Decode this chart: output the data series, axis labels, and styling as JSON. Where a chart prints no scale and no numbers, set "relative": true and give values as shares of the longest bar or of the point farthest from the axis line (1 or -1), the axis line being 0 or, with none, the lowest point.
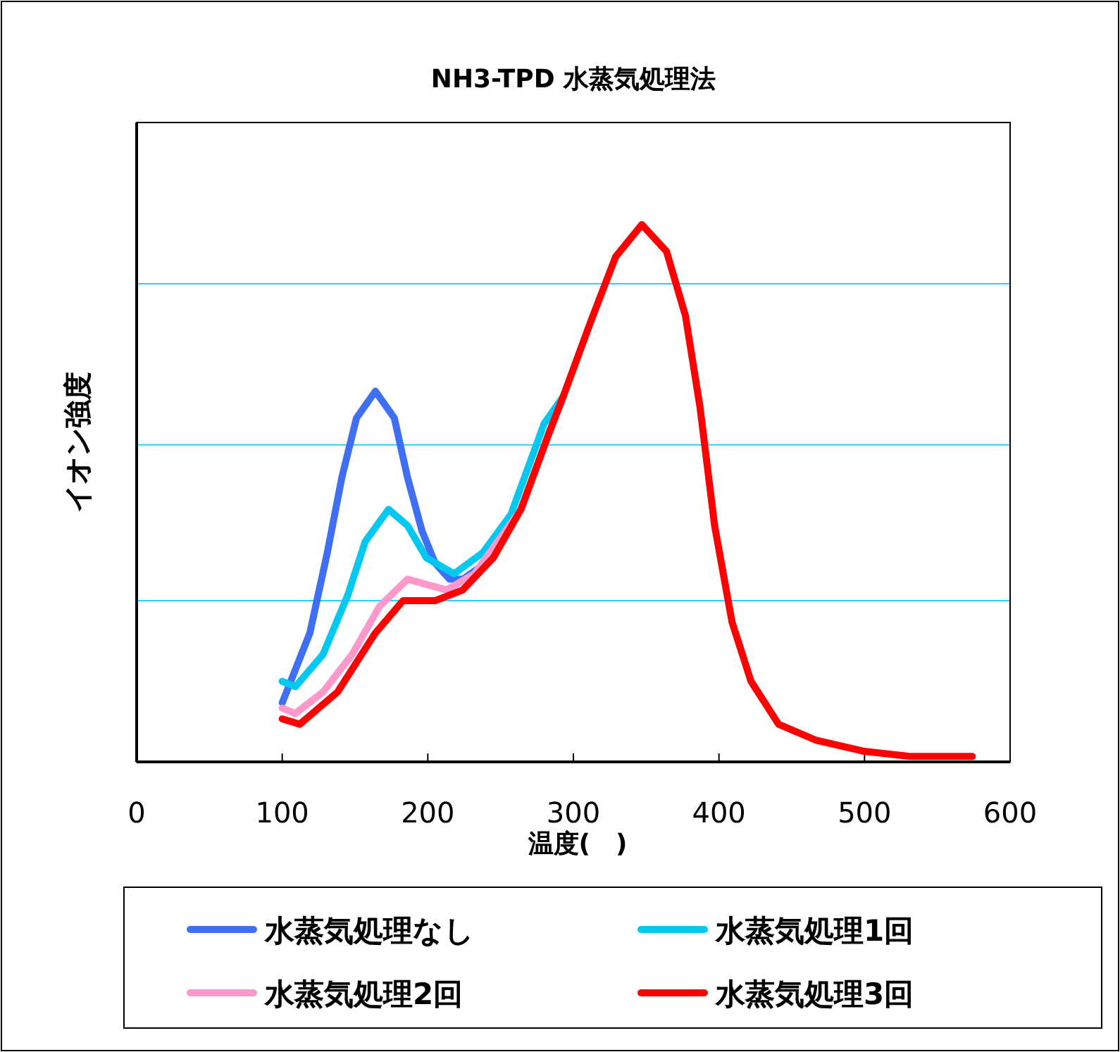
{
  "chart_data": {
    "type": "line",
    "title": "NH3-TPD  水蒸気処理法",
    "xlabel": "温度(　)",
    "ylabel": "イオン強度",
    "relative": true,
    "xlim": [
      0,
      600
    ],
    "xticks": [
      0,
      100,
      200,
      300,
      400,
      500,
      600
    ],
    "ref_lines": [
      {
        "axis": "y",
        "value": 0.3,
        "color": "#33ccff"
      },
      {
        "axis": "y",
        "value": 0.59,
        "color": "#33ccff"
      },
      {
        "axis": "y",
        "value": 0.89,
        "color": "#33ccff"
      }
    ],
    "legend": "bottom",
    "marker": "none",
    "line_style": "solid",
    "series": [
      {
        "name": "水蒸気処理なし",
        "color": "#3f6ff5",
        "x": [
          100,
          119,
          131,
          141,
          151,
          164,
          177,
          186,
          196,
          205,
          215,
          224,
          245
        ],
        "values": [
          0.11,
          0.24,
          0.39,
          0.53,
          0.64,
          0.69,
          0.64,
          0.53,
          0.43,
          0.37,
          0.34,
          0.34,
          0.38
        ]
      },
      {
        "name": "水蒸気処理1回",
        "color": "#00c8f0",
        "x": [
          100,
          109,
          128,
          145,
          157,
          173,
          186,
          199,
          218,
          238,
          257,
          280,
          293
        ],
        "values": [
          0.15,
          0.14,
          0.2,
          0.31,
          0.41,
          0.47,
          0.44,
          0.38,
          0.35,
          0.39,
          0.46,
          0.63,
          0.68
        ]
      },
      {
        "name": "水蒸気処理2回",
        "color": "#ff99cc",
        "x": [
          100,
          109,
          128,
          148,
          167,
          186,
          213,
          232,
          264,
          283,
          293
        ],
        "values": [
          0.1,
          0.09,
          0.13,
          0.2,
          0.29,
          0.34,
          0.32,
          0.35,
          0.47,
          0.61,
          0.68
        ]
      },
      {
        "name": "水蒸気処理3回",
        "color": "#ff0000",
        "x": [
          100,
          112,
          138,
          164,
          183,
          205,
          224,
          245,
          264,
          283,
          293,
          312,
          329,
          347,
          364,
          377,
          387,
          397,
          409,
          422,
          441,
          467,
          499,
          532,
          574
        ],
        "values": [
          0.08,
          0.07,
          0.13,
          0.24,
          0.3,
          0.3,
          0.32,
          0.38,
          0.47,
          0.61,
          0.68,
          0.82,
          0.94,
          1.0,
          0.95,
          0.83,
          0.66,
          0.44,
          0.26,
          0.15,
          0.07,
          0.04,
          0.02,
          0.01,
          0.01
        ]
      }
    ]
  }
}
